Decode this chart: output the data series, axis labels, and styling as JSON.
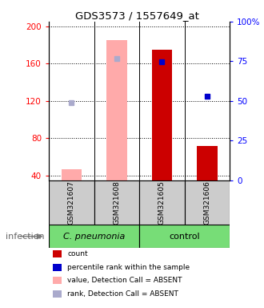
{
  "title": "GDS3573 / 1557649_at",
  "samples": [
    "GSM321607",
    "GSM321608",
    "GSM321605",
    "GSM321606"
  ],
  "ylim_left": [
    35,
    205
  ],
  "ylim_right": [
    0,
    100
  ],
  "yticks_left": [
    40,
    80,
    120,
    160,
    200
  ],
  "yticks_right": [
    0,
    25,
    50,
    75,
    100
  ],
  "ytick_labels_left": [
    "40",
    "80",
    "120",
    "160",
    "200"
  ],
  "ytick_labels_right": [
    "0",
    "25",
    "50",
    "75",
    "100%"
  ],
  "bar_values": [
    47,
    185,
    175,
    72
  ],
  "bar_absent": [
    true,
    true,
    false,
    false
  ],
  "bar_color_present": "#cc0000",
  "bar_color_absent": "#ffaaaa",
  "rank_absent_positions": [
    118,
    165,
    null,
    null
  ],
  "rank_absent_color": "#aaaacc",
  "percentile_positions": [
    null,
    null,
    162,
    125
  ],
  "percentile_color": "#0000cc",
  "legend_items": [
    {
      "label": "count",
      "color": "#cc0000"
    },
    {
      "label": "percentile rank within the sample",
      "color": "#0000cc"
    },
    {
      "label": "value, Detection Call = ABSENT",
      "color": "#ffaaaa"
    },
    {
      "label": "rank, Detection Call = ABSENT",
      "color": "#aaaacc"
    }
  ],
  "group_cp_label": "C. pneumonia",
  "group_ctrl_label": "control",
  "infection_label": "infection",
  "group_color": "#77dd77",
  "sample_box_color": "#cccccc",
  "chart_bg": "#ffffff"
}
